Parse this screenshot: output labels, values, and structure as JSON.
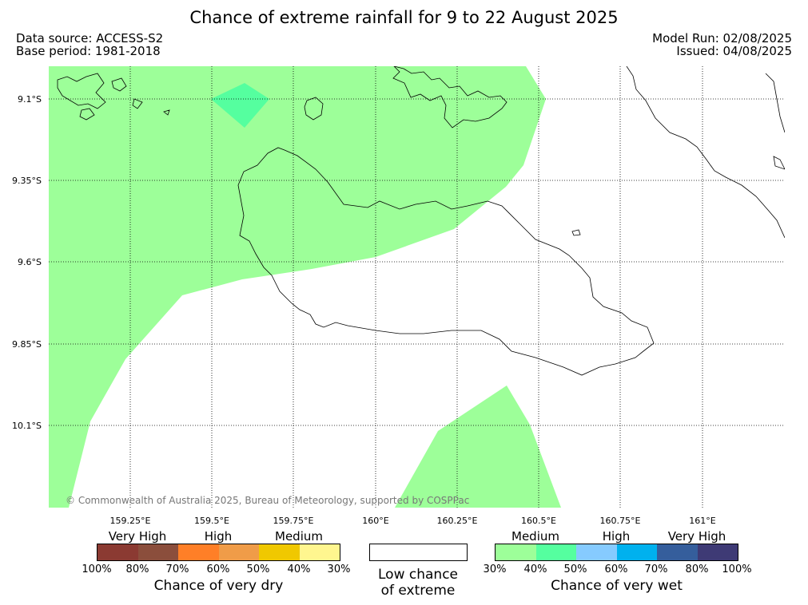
{
  "title": "Chance of extreme rainfall for 9 to 22 August 2025",
  "data_source": "Data source: ACCESS-S2",
  "base_period": "Base period: 1981-2018",
  "model_run": "Model Run: 02/08/2025",
  "issued": "Issued: 04/08/2025",
  "copyright": "© Commonwealth of Australia 2025, Bureau of Meteorology, supported by COSPPac",
  "map": {
    "lat_labels": [
      "9.1°S",
      "9.35°S",
      "9.6°S",
      "9.85°S",
      "10.1°S"
    ],
    "lon_labels": [
      "159.25°E",
      "159.5°E",
      "159.75°E",
      "160°E",
      "160.25°E",
      "160.5°E",
      "160.75°E",
      "161°E"
    ]
  },
  "legend": {
    "dry": {
      "headings": [
        "Very High",
        "High",
        "Medium"
      ],
      "ticks": [
        "100%",
        "80%",
        "70%",
        "60%",
        "50%",
        "40%",
        "30%"
      ],
      "colors": [
        "#8b3a32",
        "#8b4e3c",
        "#ff7f27",
        "#f09c48",
        "#f0c800",
        "#fff68f"
      ],
      "title": "Chance of very dry"
    },
    "low": {
      "title_line1": "Low chance",
      "title_line2": "of extreme"
    },
    "wet": {
      "headings": [
        "Medium",
        "High",
        "Very High"
      ],
      "ticks": [
        "30%",
        "40%",
        "50%",
        "60%",
        "70%",
        "80%",
        "100%"
      ],
      "colors": [
        "#9dff99",
        "#55ff9f",
        "#86cbff",
        "#00b1ee",
        "#355e9c",
        "#3e3a75"
      ],
      "title": "Chance of very wet"
    }
  }
}
